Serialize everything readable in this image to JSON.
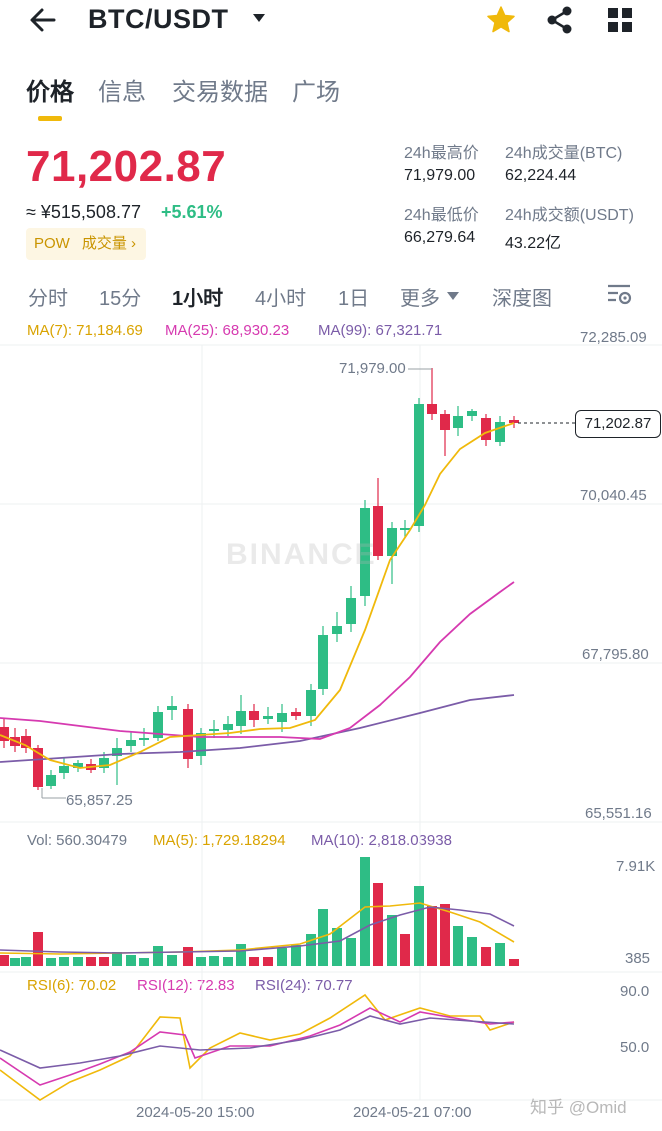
{
  "header": {
    "pair": "BTC/USDT",
    "icons": [
      "back-arrow-icon",
      "caret-down-icon",
      "star-icon",
      "share-icon",
      "grid-icon"
    ],
    "star_color": "#f0b90b"
  },
  "tabs": [
    {
      "label": "价格",
      "active": true
    },
    {
      "label": "信息",
      "active": false
    },
    {
      "label": "交易数据",
      "active": false
    },
    {
      "label": "广场",
      "active": false
    }
  ],
  "price": {
    "last": "71,202.87",
    "cny": "≈ ¥515,508.77",
    "change": "+5.61%",
    "tag_pow": "POW",
    "tag_volume": "成交量 ›"
  },
  "stats": {
    "high_label": "24h最高价",
    "high_value": "71,979.00",
    "vol_btc_label": "24h成交量(BTC)",
    "vol_btc_value": "62,224.44",
    "low_label": "24h最低价",
    "low_value": "66,279.64",
    "vol_usdt_label": "24h成交额(USDT)",
    "vol_usdt_value": "43.22亿"
  },
  "intervals": [
    {
      "label": "分时",
      "active": false
    },
    {
      "label": "15分",
      "active": false
    },
    {
      "label": "1小时",
      "active": true
    },
    {
      "label": "4小时",
      "active": false
    },
    {
      "label": "1日",
      "active": false
    },
    {
      "label": "更多",
      "active": false
    },
    {
      "label": "深度图",
      "active": false
    }
  ],
  "chart": {
    "ma7": "MA(7): 71,184.69",
    "ma25": "MA(25): 68,930.23",
    "ma99": "MA(99): 67,321.71",
    "vol": "Vol: 560.30479",
    "vol_ma5": "MA(5): 1,729.18294",
    "vol_ma10": "MA(10): 2,818.03938",
    "rsi6": "RSI(6): 70.02",
    "rsi12": "RSI(12): 72.83",
    "rsi24": "RSI(24): 70.77",
    "price_axis": [
      "72,285.09",
      "70,040.45",
      "67,795.80",
      "65,551.16"
    ],
    "vol_axis": [
      "7.91K",
      "385"
    ],
    "rsi_axis": [
      "90.0",
      "50.0"
    ],
    "time_axis": [
      "2024-05-20 15:00",
      "2024-05-21 07:00"
    ],
    "high_marker": "71,979.00",
    "low_marker": "65,857.25",
    "last_price_tag": "71,202.87",
    "watermark": "BINANCE",
    "colors": {
      "up": "#2ebd85",
      "down": "#e0294a",
      "ma7": "#f0b90b",
      "ma25": "#d63ab0",
      "ma99": "#7b5ca8"
    }
  },
  "footer": {
    "watermark": "知乎 @Omid"
  }
}
